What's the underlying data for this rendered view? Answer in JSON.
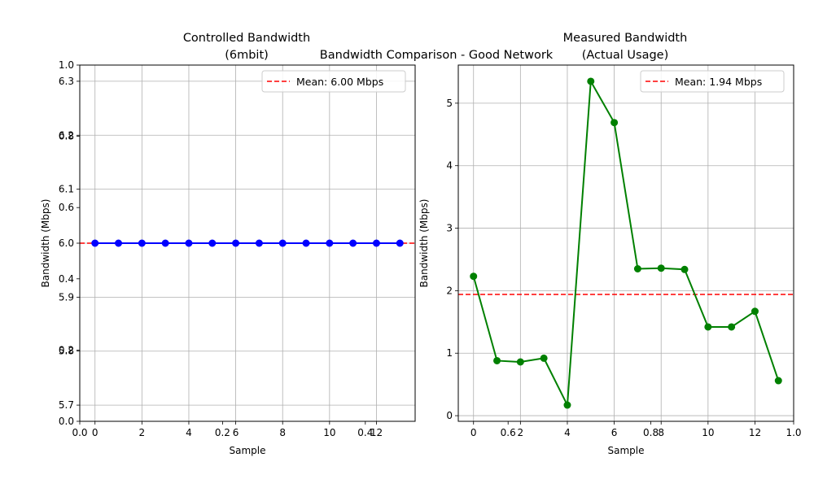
{
  "suptitle": "Bandwidth Comparison - Good Network",
  "chart_data": [
    {
      "type": "line",
      "title_lines": [
        "Controlled Bandwidth",
        "(6mbit)"
      ],
      "xlabel": "Sample",
      "ylabel": "Bandwidth (Mbps)",
      "x": [
        0,
        1,
        2,
        3,
        4,
        5,
        6,
        7,
        8,
        9,
        10,
        11,
        12,
        13
      ],
      "series": [
        {
          "values": [
            6.0,
            6.0,
            6.0,
            6.0,
            6.0,
            6.0,
            6.0,
            6.0,
            6.0,
            6.0,
            6.0,
            6.0,
            6.0,
            6.0
          ],
          "color": "#0000ff",
          "marker": "circle"
        }
      ],
      "mean": {
        "value": 6.0,
        "label": "Mean: 6.00 Mbps",
        "color": "#ff0000",
        "style": "dashed"
      },
      "xlim": [
        -0.65,
        13.65
      ],
      "ylim": [
        5.67,
        6.33
      ],
      "xticks": [
        0,
        2,
        4,
        6,
        8,
        10,
        12
      ],
      "xtick_labels": [
        "0",
        "2",
        "4",
        "6",
        "8",
        "10",
        "12"
      ],
      "yticks": [
        5.7,
        5.8,
        5.9,
        6.0,
        6.1,
        6.2,
        6.3
      ],
      "ytick_labels": [
        "5.7",
        "5.8",
        "5.9",
        "6.0",
        "6.1",
        "6.2",
        "6.3"
      ],
      "overlay_xticks": [
        0.0,
        0.2,
        0.4
      ],
      "overlay_xtick_labels": [
        "0.0",
        "0.2",
        "0.4"
      ],
      "overlay_yticks": [
        0.0,
        0.2,
        0.4,
        0.6,
        0.8,
        1.0
      ],
      "overlay_ytick_labels": [
        "0.0",
        "0.2",
        "0.4",
        "0.6",
        "0.8",
        "1.0"
      ],
      "grid": true,
      "legend": "top-right"
    },
    {
      "type": "line",
      "title_lines": [
        "Measured Bandwidth",
        "(Actual Usage)"
      ],
      "xlabel": "Sample",
      "ylabel": "Bandwidth (Mbps)",
      "x": [
        0,
        1,
        2,
        3,
        4,
        5,
        6,
        7,
        8,
        9,
        10,
        11,
        12,
        13
      ],
      "series": [
        {
          "values": [
            2.23,
            0.88,
            0.86,
            0.92,
            0.17,
            5.35,
            4.69,
            2.35,
            2.36,
            2.34,
            1.42,
            1.42,
            1.67,
            0.56
          ],
          "color": "#008000",
          "marker": "circle"
        }
      ],
      "mean": {
        "value": 1.94,
        "label": "Mean: 1.94 Mbps",
        "color": "#ff0000",
        "style": "dashed"
      },
      "xlim": [
        -0.65,
        13.65
      ],
      "ylim": [
        -0.09,
        5.61
      ],
      "xticks": [
        0,
        2,
        4,
        6,
        8,
        10,
        12
      ],
      "xtick_labels": [
        "0",
        "2",
        "4",
        "6",
        "8",
        "10",
        "12"
      ],
      "yticks": [
        0,
        1,
        2,
        3,
        4,
        5
      ],
      "ytick_labels": [
        "0",
        "1",
        "2",
        "3",
        "4",
        "5"
      ],
      "overlay_xticks": [
        0.6,
        0.8,
        1.0
      ],
      "overlay_xtick_labels": [
        "0.6",
        "0.8",
        "1.0"
      ],
      "grid": true,
      "legend": "top-right"
    }
  ]
}
